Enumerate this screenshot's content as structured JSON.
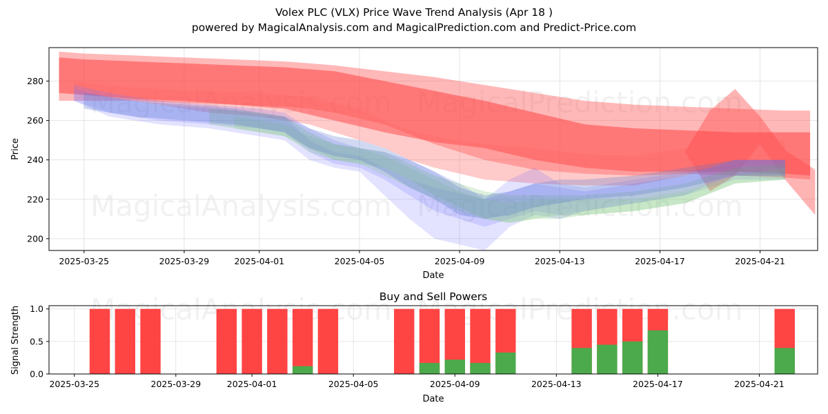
{
  "title": "Volex PLC (VLX) Price Wave Trend Analysis (Apr 18 )",
  "subtitle": "powered by MagicalAnalysis.com and MagicalPrediction.com and Predict-Price.com",
  "watermarks": [
    "MagicalAnalysis.com",
    "MagicalPrediction.com"
  ],
  "chart_data": [
    {
      "type": "area",
      "title": "",
      "xlabel": "Date",
      "ylabel": "Price",
      "x_ticks": [
        "2025-03-25",
        "2025-03-29",
        "2025-04-01",
        "2025-04-05",
        "2025-04-09",
        "2025-04-13",
        "2025-04-17",
        "2025-04-21"
      ],
      "y_ticks": [
        200,
        220,
        240,
        260,
        280
      ],
      "xlim_days": [
        -1.4,
        29.3
      ],
      "ylim": [
        194,
        297
      ],
      "grid": true,
      "x_start_date": "2025-03-25",
      "bands": [
        {
          "color": "#ff5555",
          "opacity": 0.42,
          "days": [
            -1,
            0,
            2,
            4,
            6,
            8,
            9,
            10,
            12,
            14,
            16,
            18,
            20,
            22,
            24,
            26,
            28,
            29
          ],
          "upper": [
            295,
            294,
            293,
            292,
            291,
            290,
            289,
            288,
            285,
            282,
            278,
            274,
            270,
            268,
            267,
            266,
            265,
            265
          ],
          "lower": [
            270,
            270,
            270,
            269,
            268,
            267,
            266,
            264,
            258,
            248,
            240,
            235,
            233,
            232,
            233,
            232,
            231,
            230
          ]
        },
        {
          "color": "#ff4444",
          "opacity": 0.55,
          "days": [
            -1,
            0,
            2,
            4,
            6,
            8,
            10,
            12,
            14,
            16,
            18,
            20,
            22,
            24,
            26,
            28,
            29
          ],
          "upper": [
            292,
            291,
            290,
            289,
            288,
            287,
            285,
            280,
            275,
            270,
            264,
            258,
            256,
            255,
            254,
            254,
            254
          ],
          "lower": [
            274,
            273,
            271,
            270,
            268,
            266,
            260,
            254,
            249,
            246,
            240,
            236,
            234,
            234,
            234,
            233,
            232
          ]
        },
        {
          "color": "#ff4444",
          "opacity": 0.4,
          "days": [
            24,
            25,
            26,
            27,
            28,
            29.2
          ],
          "upper": [
            244,
            265,
            276,
            262,
            245,
            235
          ],
          "lower": [
            244,
            224,
            232,
            248,
            230,
            212
          ]
        },
        {
          "color": "#ff6666",
          "opacity": 0.35,
          "days": [
            -0.4,
            1,
            3,
            5,
            7,
            9,
            11,
            12,
            13,
            14,
            16,
            18,
            20,
            22,
            24,
            26,
            28
          ],
          "upper": [
            280,
            278,
            276,
            275,
            274,
            272,
            266,
            260,
            255,
            252,
            248,
            246,
            243,
            242,
            246,
            250,
            250
          ],
          "lower": [
            276,
            272,
            268,
            264,
            262,
            258,
            250,
            246,
            240,
            236,
            230,
            228,
            227,
            227,
            232,
            238,
            238
          ]
        },
        {
          "color": "#6666ff",
          "opacity": 0.18,
          "days": [
            -0.4,
            1,
            3,
            5,
            6,
            7,
            8,
            9,
            10,
            11,
            12,
            13,
            14,
            16,
            17,
            18,
            19,
            20,
            21,
            22,
            23,
            24,
            25,
            26,
            28
          ],
          "upper": [
            276,
            272,
            268,
            266,
            265,
            263,
            262,
            250,
            244,
            242,
            236,
            230,
            226,
            220,
            230,
            236,
            228,
            226,
            228,
            230,
            232,
            234,
            236,
            240,
            240
          ],
          "lower": [
            270,
            262,
            258,
            256,
            254,
            252,
            250,
            240,
            236,
            234,
            222,
            210,
            200,
            194,
            206,
            212,
            210,
            214,
            216,
            218,
            220,
            222,
            226,
            230,
            230
          ]
        },
        {
          "color": "#7777ff",
          "opacity": 0.22,
          "days": [
            -0.4,
            1,
            3,
            5,
            7,
            8,
            9,
            10,
            11,
            12,
            13,
            14,
            15,
            16,
            17,
            18,
            19,
            20,
            21,
            22,
            23,
            24,
            25,
            26,
            28
          ],
          "upper": [
            278,
            274,
            270,
            268,
            266,
            264,
            256,
            250,
            246,
            244,
            240,
            234,
            228,
            220,
            224,
            228,
            226,
            224,
            226,
            228,
            230,
            232,
            236,
            240,
            240
          ],
          "lower": [
            270,
            264,
            260,
            258,
            256,
            254,
            244,
            238,
            236,
            230,
            222,
            214,
            210,
            206,
            210,
            214,
            212,
            214,
            216,
            218,
            220,
            222,
            228,
            232,
            232
          ]
        },
        {
          "color": "#66bb66",
          "opacity": 0.22,
          "days": [
            5,
            6,
            7,
            8,
            9,
            10,
            11,
            12,
            13,
            14,
            15,
            16,
            17,
            18,
            19,
            20,
            22,
            24,
            26,
            28
          ],
          "upper": [
            266,
            265,
            264,
            262,
            254,
            248,
            246,
            244,
            238,
            232,
            228,
            224,
            222,
            222,
            222,
            222,
            224,
            228,
            236,
            238
          ],
          "lower": [
            258,
            256,
            254,
            252,
            246,
            240,
            238,
            236,
            230,
            222,
            216,
            210,
            208,
            210,
            210,
            212,
            214,
            218,
            228,
            230
          ]
        },
        {
          "color": "#88cc88",
          "opacity": 0.25,
          "days": [
            6,
            7,
            8,
            9,
            10,
            11,
            12,
            13,
            14,
            15,
            16,
            17,
            18,
            19,
            20,
            22,
            24,
            26,
            28
          ],
          "upper": [
            262,
            260,
            258,
            252,
            248,
            246,
            242,
            236,
            230,
            224,
            220,
            218,
            220,
            220,
            220,
            220,
            224,
            232,
            236
          ],
          "lower": [
            256,
            254,
            252,
            244,
            240,
            238,
            232,
            226,
            220,
            214,
            210,
            208,
            210,
            212,
            212,
            214,
            218,
            228,
            230
          ]
        },
        {
          "color": "#5577cc",
          "opacity": 0.28,
          "days": [
            0,
            2,
            4,
            6,
            7,
            8,
            9,
            10,
            11,
            12,
            13,
            14,
            15,
            16,
            17,
            18,
            19,
            20,
            22,
            24,
            26,
            28
          ],
          "upper": [
            274,
            270,
            268,
            266,
            264,
            262,
            256,
            252,
            250,
            246,
            240,
            234,
            226,
            222,
            224,
            228,
            230,
            230,
            232,
            236,
            240,
            240
          ],
          "lower": [
            266,
            262,
            260,
            258,
            256,
            254,
            246,
            242,
            240,
            234,
            226,
            220,
            212,
            210,
            212,
            216,
            218,
            220,
            222,
            226,
            232,
            232
          ]
        }
      ]
    },
    {
      "type": "bar",
      "title": "Buy and Sell Powers",
      "xlabel": "Date",
      "ylabel": "Signal Strength",
      "y_ticks": [
        "0.0",
        "0.5",
        "1.0"
      ],
      "ylim": [
        0,
        1.05
      ],
      "xlim_days": [
        -1.0,
        29.3
      ],
      "x_ticks": [
        "2025-03-25",
        "2025-03-29",
        "2025-04-01",
        "2025-04-05",
        "2025-04-09",
        "2025-04-13",
        "2025-04-17",
        "2025-04-21"
      ],
      "series": [
        {
          "name": "Sell",
          "color": "#ff4444"
        },
        {
          "name": "Buy",
          "color": "#4caa4c"
        }
      ],
      "bars": [
        {
          "day": 1,
          "buy": 0.0
        },
        {
          "day": 2,
          "buy": 0.0
        },
        {
          "day": 3,
          "buy": 0.0
        },
        {
          "day": 6,
          "buy": 0.0
        },
        {
          "day": 7,
          "buy": 0.0
        },
        {
          "day": 8,
          "buy": 0.0
        },
        {
          "day": 9,
          "buy": 0.12
        },
        {
          "day": 10,
          "buy": 0.0
        },
        {
          "day": 13,
          "buy": 0.0
        },
        {
          "day": 14,
          "buy": 0.17
        },
        {
          "day": 15,
          "buy": 0.22
        },
        {
          "day": 16,
          "buy": 0.17
        },
        {
          "day": 17,
          "buy": 0.33
        },
        {
          "day": 20,
          "buy": 0.4
        },
        {
          "day": 21,
          "buy": 0.45
        },
        {
          "day": 22,
          "buy": 0.5
        },
        {
          "day": 23,
          "buy": 0.67
        },
        {
          "day": 28,
          "buy": 0.4
        }
      ]
    }
  ]
}
